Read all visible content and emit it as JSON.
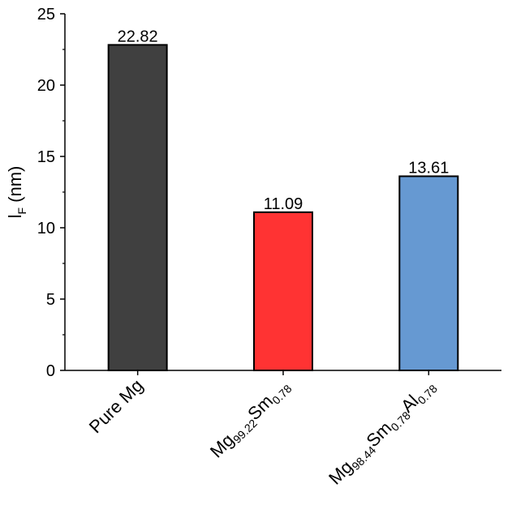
{
  "chart_data": {
    "type": "bar",
    "categories": [
      {
        "parts": [
          {
            "t": "Pure Mg",
            "sub": false
          }
        ]
      },
      {
        "parts": [
          {
            "t": "Mg",
            "sub": false
          },
          {
            "t": "99.22",
            "sub": true
          },
          {
            "t": "Sm",
            "sub": false
          },
          {
            "t": "0.78",
            "sub": true
          }
        ]
      },
      {
        "parts": [
          {
            "t": "Mg",
            "sub": false
          },
          {
            "t": "98.44",
            "sub": true
          },
          {
            "t": "Sm",
            "sub": false
          },
          {
            "t": "0.78",
            "sub": true
          },
          {
            "t": "Al",
            "sub": false
          },
          {
            "t": "0.78",
            "sub": true
          }
        ]
      }
    ],
    "values": [
      22.82,
      11.09,
      13.61
    ],
    "data_labels": [
      "22.82",
      "11.09",
      "13.61"
    ],
    "colors": [
      "#404040",
      "#ff3333",
      "#6699d2"
    ],
    "ylabel": {
      "main": "l",
      "sub": "F",
      "unit": " (nm)"
    },
    "ylim": [
      0,
      25
    ],
    "yticks": [
      0,
      5,
      10,
      15,
      20,
      25
    ],
    "ytick_labels": [
      "0",
      "5",
      "10",
      "15",
      "20",
      "25"
    ],
    "grid": false,
    "legend": "none"
  }
}
